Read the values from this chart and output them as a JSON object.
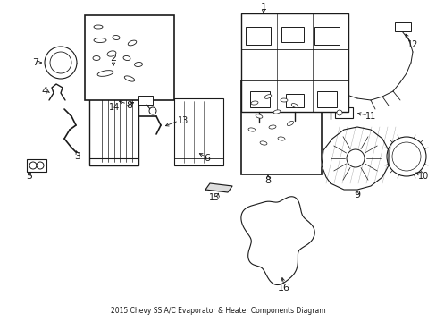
{
  "title": "2015 Chevy SS A/C Evaporator & Heater Components Diagram",
  "bg_color": "#ffffff",
  "fig_width": 4.89,
  "fig_height": 3.6,
  "dpi": 100,
  "label_fontsize": 7,
  "line_color": "#1a1a1a"
}
